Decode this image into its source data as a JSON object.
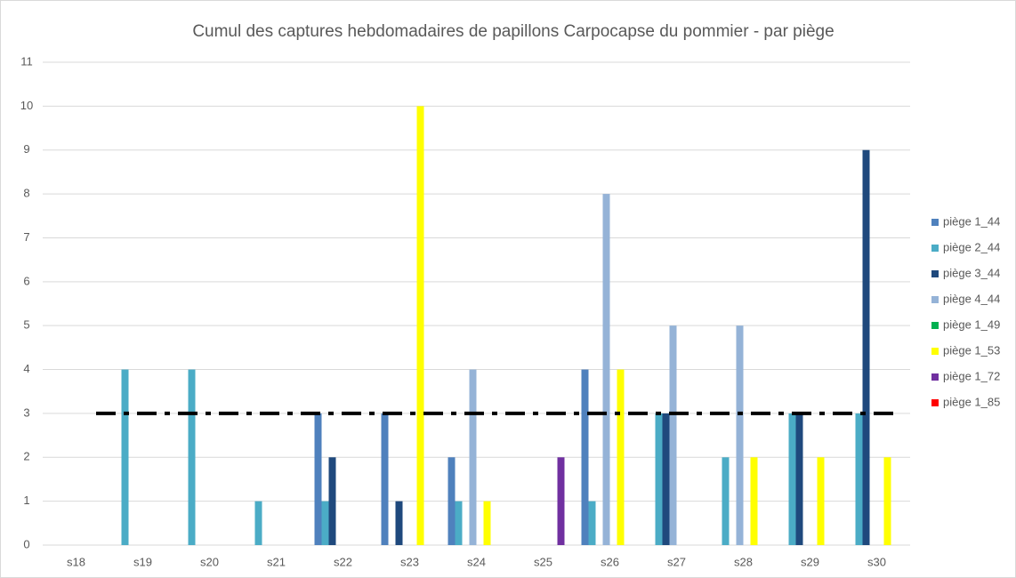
{
  "chart_data": {
    "type": "bar",
    "title": "Cumul des captures hebdomadaires de papillons Carpocapse du pommier - par piège",
    "categories": [
      "s18",
      "s19",
      "s20",
      "s21",
      "s22",
      "s23",
      "s24",
      "s25",
      "s26",
      "s27",
      "s28",
      "s29",
      "s30"
    ],
    "series": [
      {
        "name": "piège 1_44",
        "color": "#4f81bd",
        "values": [
          0,
          0,
          0,
          0,
          3,
          3,
          2,
          0,
          4,
          0,
          0,
          0,
          0
        ]
      },
      {
        "name": "piège 2_44",
        "color": "#4bacc6",
        "values": [
          0,
          4,
          4,
          1,
          1,
          0,
          1,
          0,
          1,
          3,
          2,
          3,
          3
        ]
      },
      {
        "name": "piège 3_44",
        "color": "#1f497d",
        "values": [
          0,
          0,
          0,
          0,
          2,
          1,
          0,
          0,
          0,
          3,
          0,
          3,
          9
        ]
      },
      {
        "name": "piège 4_44",
        "color": "#95b3d7",
        "values": [
          0,
          0,
          0,
          0,
          0,
          0,
          4,
          0,
          8,
          5,
          5,
          0,
          0
        ]
      },
      {
        "name": "piège 1_49",
        "color": "#00b050",
        "values": [
          0,
          0,
          0,
          0,
          0,
          0,
          0,
          0,
          0,
          0,
          0,
          0,
          0
        ]
      },
      {
        "name": "piège 1_53",
        "color": "#ffff00",
        "values": [
          0,
          0,
          0,
          0,
          0,
          10,
          1,
          0,
          4,
          0,
          2,
          2,
          2
        ]
      },
      {
        "name": "piège 1_72",
        "color": "#7030a0",
        "values": [
          0,
          0,
          0,
          0,
          0,
          0,
          0,
          2,
          0,
          0,
          0,
          0,
          0
        ]
      },
      {
        "name": "piège 1_85",
        "color": "#ff0000",
        "values": [
          0,
          0,
          0,
          0,
          0,
          0,
          0,
          0,
          0,
          0,
          0,
          0,
          0
        ]
      }
    ],
    "threshold": 3,
    "ylim": [
      0,
      11
    ],
    "yticks": [
      0,
      1,
      2,
      3,
      4,
      5,
      6,
      7,
      8,
      9,
      10,
      11
    ],
    "grid": true,
    "legend": "right"
  }
}
